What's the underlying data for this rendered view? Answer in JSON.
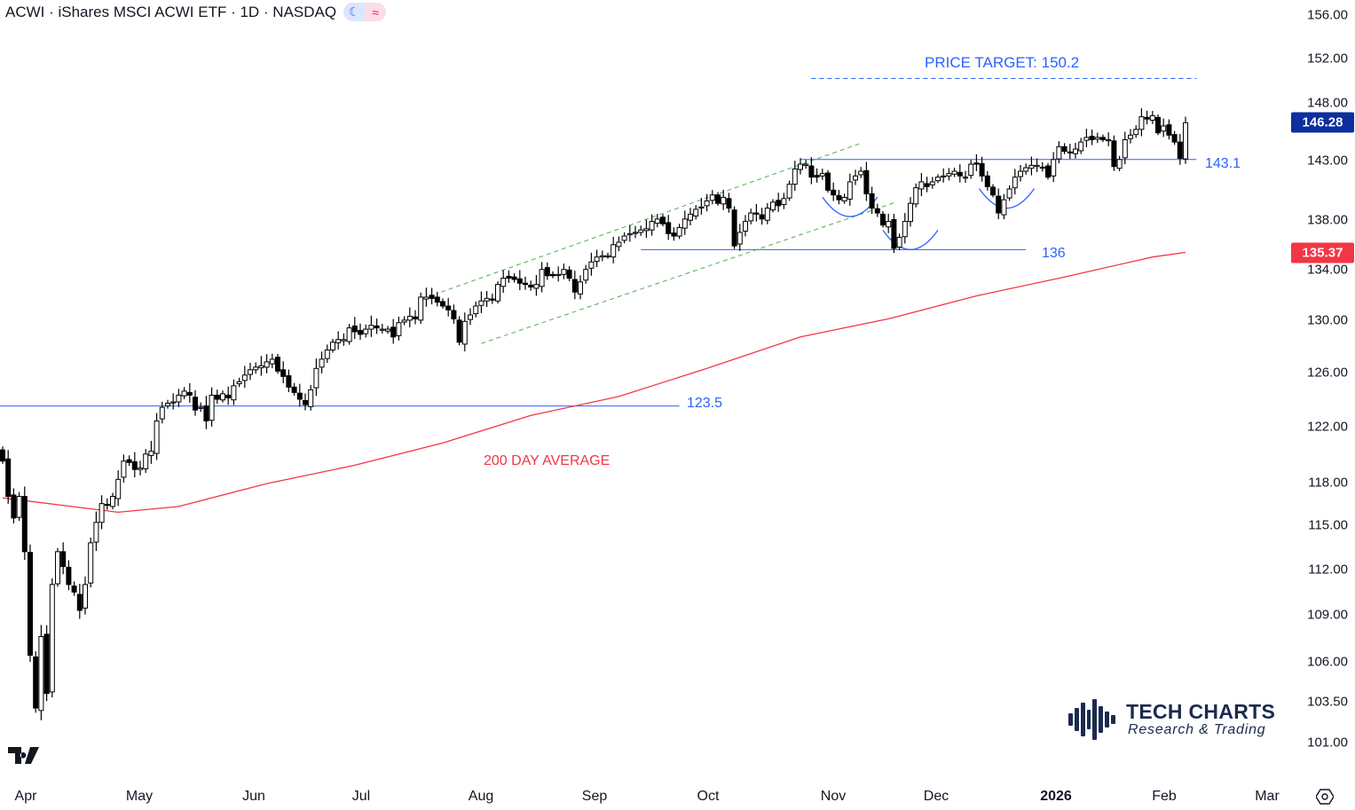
{
  "header": {
    "symbol": "ACWI",
    "name": "iShares MSCI ACWI ETF",
    "interval": "1D",
    "exchange": "NASDAQ",
    "title": "ACWI · iShares MSCI ACWI ETF · 1D · NASDAQ",
    "session_icon": "moon-icon",
    "mode_icon": "approx-wave-icon"
  },
  "colors": {
    "up_candle": "#ffffff",
    "down_candle": "#000000",
    "ma_line": "#f23645",
    "support_lines": "#2962ff",
    "channel": "#4caf50",
    "last_price_badge": "#0d2e9e",
    "ma_badge": "#f23645"
  },
  "chart_data": {
    "type": "candlestick",
    "title": "ACWI · iShares MSCI ACWI ETF · 1D · NASDAQ",
    "scale": "log",
    "ylim": [
      101,
      156
    ],
    "y_ticks": [
      "156.00",
      "152.00",
      "148.00",
      "143.00",
      "138.00",
      "134.00",
      "130.00",
      "126.00",
      "122.00",
      "118.00",
      "115.00",
      "112.00",
      "109.00",
      "106.00",
      "103.50",
      "101.00"
    ],
    "x_ticks": [
      "Apr",
      "May",
      "Jun",
      "Jul",
      "Aug",
      "Sep",
      "Oct",
      "Nov",
      "Dec",
      "2026",
      "Feb",
      "Mar"
    ],
    "closes": [
      119.5,
      117.0,
      115.5,
      117.0,
      113.2,
      106.4,
      103.1,
      107.6,
      104.0,
      111.0,
      113.2,
      112.2,
      111.0,
      110.5,
      109.3,
      111.0,
      113.8,
      115.2,
      116.5,
      116.4,
      117.0,
      118.2,
      119.5,
      119.4,
      118.9,
      119.0,
      120.0,
      120.2,
      122.4,
      123.4,
      123.7,
      123.8,
      124.3,
      124.6,
      124.3,
      123.2,
      123.4,
      122.4,
      124.3,
      124.0,
      124.4,
      124.1,
      125.0,
      125.3,
      125.8,
      126.2,
      126.4,
      126.5,
      126.8,
      127.0,
      126.1,
      125.7,
      124.9,
      124.5,
      124.0,
      123.6,
      124.7,
      126.3,
      127.0,
      127.7,
      128.3,
      128.5,
      128.5,
      129.4,
      129.1,
      128.9,
      129.3,
      129.6,
      129.4,
      129.3,
      129.3,
      128.7,
      129.8,
      130.0,
      130.3,
      130.1,
      131.8,
      131.8,
      131.7,
      131.4,
      131.1,
      130.8,
      130.1,
      128.3,
      129.9,
      130.4,
      131.1,
      131.5,
      131.7,
      131.6,
      132.8,
      133.3,
      133.3,
      133.2,
      132.9,
      132.8,
      132.6,
      132.8,
      134.0,
      133.5,
      133.5,
      133.6,
      134.0,
      133.3,
      132.2,
      133.0,
      134.0,
      134.6,
      135.0,
      135.1,
      135.1,
      136.0,
      136.2,
      136.7,
      136.9,
      137.0,
      137.2,
      137.3,
      137.9,
      138.1,
      137.7,
      136.9,
      136.7,
      137.4,
      138.1,
      138.5,
      138.9,
      139.1,
      139.6,
      140.1,
      139.4,
      139.9,
      139.0,
      135.9,
      137.0,
      137.9,
      138.6,
      138.5,
      138.1,
      139.0,
      139.5,
      139.2,
      139.8,
      141.0,
      142.3,
      142.7,
      142.7,
      141.6,
      141.6,
      141.9,
      140.5,
      140.1,
      139.7,
      139.9,
      141.2,
      141.7,
      142.1,
      140.2,
      139.0,
      138.6,
      137.6,
      137.9,
      135.7,
      136.6,
      137.9,
      139.4,
      140.7,
      141.2,
      140.8,
      141.2,
      141.6,
      141.7,
      141.9,
      142.1,
      141.7,
      141.6,
      142.7,
      142.7,
      141.7,
      140.8,
      140.1,
      138.6,
      139.7,
      140.6,
      141.6,
      142.1,
      142.4,
      142.6,
      142.6,
      142.4,
      141.6,
      143.1,
      144.2,
      143.8,
      143.7,
      144.0,
      144.6,
      145.0,
      144.8,
      145.0,
      144.8,
      144.8,
      142.5,
      143.1,
      144.8,
      145.2,
      145.7,
      146.8,
      146.6,
      146.9,
      145.4,
      146.0,
      145.2,
      144.6,
      143.2,
      146.28
    ],
    "moving_average": {
      "name": "200 DAY AVERAGE",
      "points": [
        [
          0,
          116.9
        ],
        [
          21,
          115.9
        ],
        [
          32,
          116.3
        ],
        [
          48,
          117.9
        ],
        [
          64,
          119.2
        ],
        [
          80,
          120.8
        ],
        [
          96,
          122.8
        ],
        [
          112,
          124.2
        ],
        [
          128,
          126.3
        ],
        [
          145,
          128.7
        ],
        [
          161,
          130.1
        ],
        [
          177,
          131.9
        ],
        [
          193,
          133.4
        ],
        [
          209,
          135.0
        ],
        [
          215,
          135.37
        ]
      ]
    },
    "last_price": "146.28",
    "ma_value": "135.37",
    "levels": [
      {
        "label": "123.5",
        "price": 123.5,
        "from": -1,
        "to": 123
      },
      {
        "label": "136",
        "price": 135.6,
        "from": 116,
        "to": 186
      },
      {
        "label": "143.1",
        "price": 143.1,
        "from": 145,
        "to": 217
      }
    ],
    "price_target": {
      "label": "PRICE TARGET: 150.2",
      "price": 150.2,
      "from": 147,
      "to": 217
    },
    "channel": {
      "upper": [
        [
          79.7,
          132.2
        ],
        [
          156,
          144.5
        ]
      ],
      "lower": [
        [
          87,
          128.2
        ],
        [
          162.4,
          139.5
        ]
      ]
    },
    "cup_arcs": [
      [
        149,
        159,
        138.3
      ],
      [
        160,
        170,
        135.6
      ],
      [
        177.5,
        187.5,
        139.0
      ]
    ]
  },
  "branding": {
    "logo_title": "TECH CHARTS",
    "logo_subtitle": "Research & Trading",
    "platform_logo": "TV"
  }
}
